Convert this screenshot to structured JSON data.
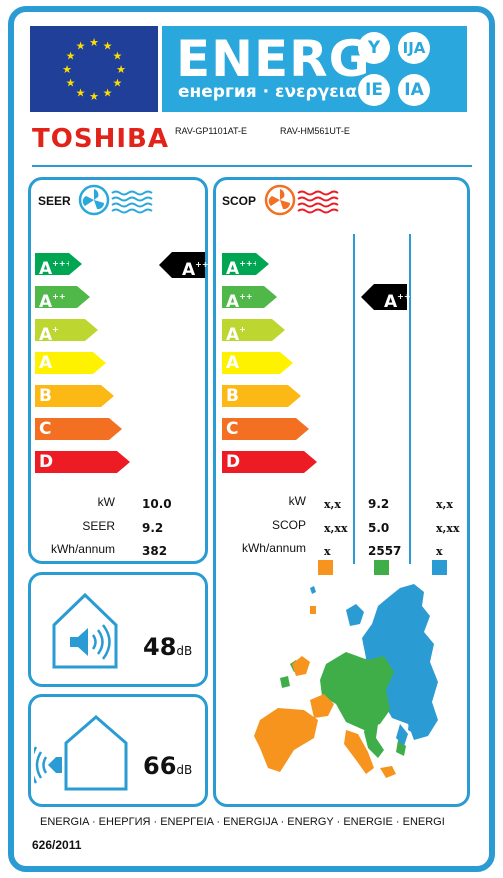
{
  "header": {
    "energ": "ENERG",
    "energ_sub": "енергия · ενεργεια",
    "suffixes": [
      "Y",
      "IJA",
      "IE",
      "IA"
    ],
    "colors": {
      "eu_blue": "#1f3f99",
      "eu_star": "#ffdd00",
      "bar_blue": "#2aa7dc",
      "brand_red": "#e2231a"
    }
  },
  "brand": "TOSHIBA",
  "models": {
    "indoor": "RAV-GP1101AT-E",
    "outdoor": "RAV-HM561UT-E"
  },
  "classes": [
    {
      "letter": "A",
      "sup": "+++",
      "color": "#00a651"
    },
    {
      "letter": "A",
      "sup": "++",
      "color": "#50b848"
    },
    {
      "letter": "A",
      "sup": "+",
      "color": "#bed630"
    },
    {
      "letter": "A",
      "sup": "",
      "color": "#fff200"
    },
    {
      "letter": "B",
      "sup": "",
      "color": "#fcb814"
    },
    {
      "letter": "C",
      "sup": "",
      "color": "#f36f21"
    },
    {
      "letter": "D",
      "sup": "",
      "color": "#ed1c24"
    }
  ],
  "cooling": {
    "title": "SEER",
    "icon": "fan-cooling-icon",
    "rating": {
      "letter": "A",
      "sup": "+++"
    },
    "labels": [
      "kW",
      "SEER",
      "kWh/annum"
    ],
    "values": [
      "10.0",
      "9.2",
      "382"
    ]
  },
  "heating": {
    "title": "SCOP",
    "icon": "fan-heating-icon",
    "rating": {
      "letter": "A",
      "sup": "++"
    },
    "labels": [
      "kW",
      "SCOP",
      "kWh/annum"
    ],
    "columns": [
      {
        "values": [
          "x,x",
          "x,xx",
          "x"
        ],
        "color": "#f7941d"
      },
      {
        "values": [
          "9.2",
          "5.0",
          "2557"
        ],
        "color": "#3fae49"
      },
      {
        "values": [
          "x,x",
          "x,xx",
          "x"
        ],
        "color": "#2a9bd3"
      }
    ]
  },
  "noise": {
    "indoor": {
      "value": "48",
      "unit": "dB",
      "icon": "indoor-speaker-icon"
    },
    "outdoor": {
      "value": "66",
      "unit": "dB",
      "icon": "outdoor-speaker-icon"
    }
  },
  "map_icon": "europe-climate-map",
  "footer": {
    "languages": "ENERGIA · ЕНЕРГИЯ · ΕΝΕΡΓΕΙΑ · ENERGIJA · ENERGY · ENERGIE · ENERGI",
    "regulation": "626/2011"
  }
}
